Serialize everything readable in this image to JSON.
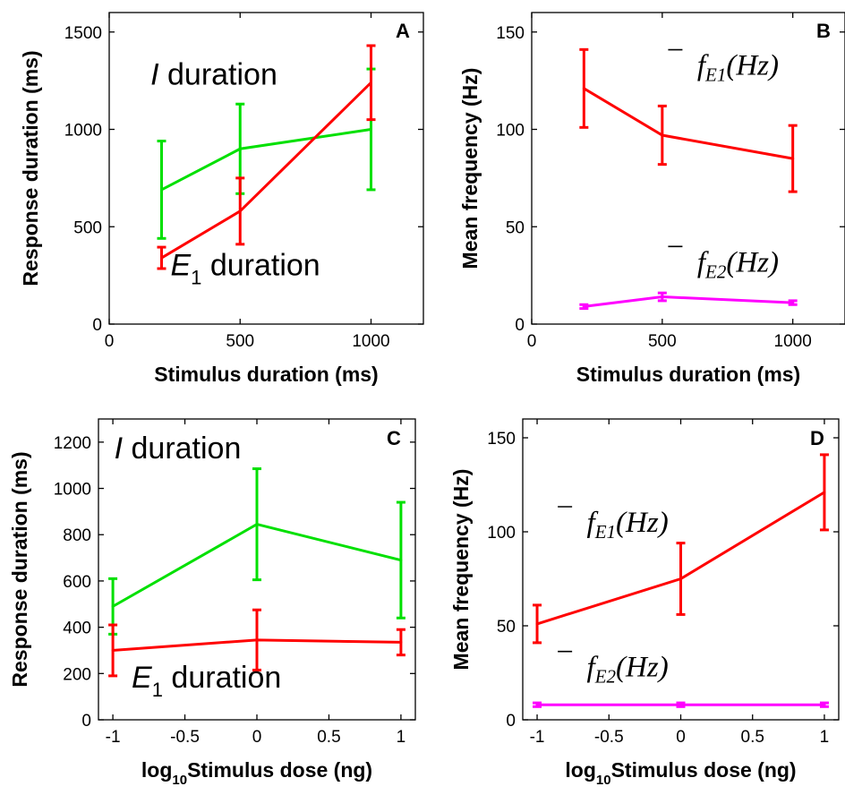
{
  "chart_data": [
    {
      "type": "line",
      "panel": "A",
      "xlabel": "Stimulus duration (ms)",
      "ylabel": "Response duration (ms)",
      "xlim": [
        0,
        1200
      ],
      "ylim": [
        0,
        1600
      ],
      "xticks": [
        0,
        500,
        1000
      ],
      "yticks": [
        0,
        500,
        1000,
        1500
      ],
      "grid": false,
      "series": [
        {
          "color": "#00e000",
          "x": [
            200,
            500,
            1000
          ],
          "y": [
            690,
            900,
            1000
          ],
          "err": [
            250,
            230,
            310
          ]
        },
        {
          "color": "#ff0000",
          "x": [
            200,
            500,
            1000
          ],
          "y": [
            340,
            580,
            1240
          ],
          "err": [
            55,
            170,
            190
          ]
        }
      ],
      "annotations": [
        {
          "italic": "I",
          "text": " duration",
          "x": 400,
          "y": 1230
        },
        {
          "italic": "E",
          "sub": "1",
          "text": " duration",
          "x": 520,
          "y": 250
        }
      ]
    },
    {
      "type": "line",
      "panel": "B",
      "xlabel": "Stimulus duration (ms)",
      "ylabel": "Mean frequency (Hz)",
      "xlim": [
        0,
        1200
      ],
      "ylim": [
        0,
        160
      ],
      "xticks": [
        0,
        500,
        1000
      ],
      "yticks": [
        0,
        50,
        100,
        150
      ],
      "grid": false,
      "series": [
        {
          "color": "#ff0000",
          "x": [
            200,
            500,
            1000
          ],
          "y": [
            121,
            97,
            85
          ],
          "err": [
            20,
            15,
            17
          ]
        },
        {
          "color": "#ff00ff",
          "x": [
            200,
            500,
            1000
          ],
          "y": [
            9,
            14,
            11
          ],
          "err": [
            1,
            2,
            1
          ]
        }
      ],
      "annotations": [
        {
          "base": "f",
          "sub": "E1",
          "text": "(Hz)",
          "x": 790,
          "y": 128
        },
        {
          "base": "f",
          "sub": "E2",
          "text": "(Hz)",
          "x": 790,
          "y": 27
        }
      ]
    },
    {
      "type": "line",
      "panel": "C",
      "xlabel": "log",
      "xlabel_sub": "10",
      "xlabel_rest": "Stimulus dose (ng)",
      "ylabel": "Response duration (ms)",
      "xlim": [
        -1.1,
        1.1
      ],
      "ylim": [
        0,
        1300
      ],
      "xticks": [
        -1,
        -0.5,
        0,
        0.5,
        1
      ],
      "yticks": [
        0,
        200,
        400,
        600,
        800,
        1000,
        1200
      ],
      "grid": false,
      "series": [
        {
          "color": "#00e000",
          "x": [
            -1,
            0,
            1
          ],
          "y": [
            490,
            845,
            690
          ],
          "err": [
            120,
            240,
            250
          ]
        },
        {
          "color": "#ff0000",
          "x": [
            -1,
            0,
            1
          ],
          "y": [
            300,
            345,
            335
          ],
          "err": [
            110,
            130,
            55
          ]
        }
      ],
      "annotations": [
        {
          "italic": "I",
          "text": " duration",
          "x": -0.55,
          "y": 1130
        },
        {
          "italic": "E",
          "sub": "1",
          "text": " duration",
          "x": -0.35,
          "y": 140
        }
      ]
    },
    {
      "type": "line",
      "panel": "D",
      "xlabel": "log",
      "xlabel_sub": "10",
      "xlabel_rest": "Stimulus dose (ng)",
      "ylabel": "Mean frequency (Hz)",
      "xlim": [
        -1.1,
        1.1
      ],
      "ylim": [
        0,
        160
      ],
      "xticks": [
        -1,
        -0.5,
        0,
        0.5,
        1
      ],
      "yticks": [
        0,
        50,
        100,
        150
      ],
      "grid": false,
      "series": [
        {
          "color": "#ff0000",
          "x": [
            -1,
            0,
            1
          ],
          "y": [
            51,
            75,
            121
          ],
          "err": [
            10,
            19,
            20
          ]
        },
        {
          "color": "#ff00ff",
          "x": [
            -1,
            0,
            1
          ],
          "y": [
            8,
            8,
            8
          ],
          "err": [
            1,
            1,
            1
          ]
        }
      ],
      "annotations": [
        {
          "base": "f",
          "sub": "E1",
          "text": "(Hz)",
          "x": -0.37,
          "y": 100
        },
        {
          "base": "f",
          "sub": "E2",
          "text": "(Hz)",
          "x": -0.37,
          "y": 23
        }
      ]
    }
  ]
}
